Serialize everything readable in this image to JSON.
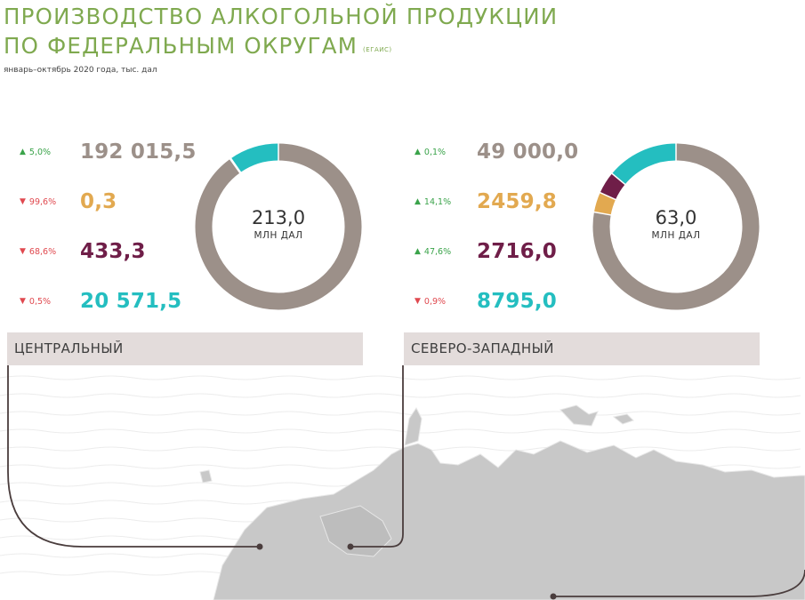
{
  "title_line1": "ПРОИЗВОДСТВО АЛКОГОЛЬНОЙ ПРОДУКЦИИ",
  "title_line2": "ПО ФЕДЕРАЛЬНЫМ ОКРУГАМ",
  "source_tag": "(ЕГАИС)",
  "subtitle": "январь–октябрь 2020 года, тыс. дал",
  "colors": {
    "gray": "#9c9089",
    "orange": "#e2a950",
    "wine": "#6f1e48",
    "teal": "#24bec0",
    "green": "#7fa94f",
    "up": "#3aa34a",
    "down": "#e0494f"
  },
  "chart_data": [
    {
      "type": "pie",
      "region": "ЦЕНТРАЛЬНЫЙ",
      "total": "213,0",
      "unit": "МЛН ДАЛ",
      "items": [
        {
          "value": 192015.5,
          "value_text": "192 015,5",
          "change": "5,0%",
          "direction": "up",
          "color": "#9c9089"
        },
        {
          "value": 0.3,
          "value_text": "0,3",
          "change": "99,6%",
          "direction": "down",
          "color": "#e2a950"
        },
        {
          "value": 433.3,
          "value_text": "433,3",
          "change": "68,6%",
          "direction": "down",
          "color": "#6f1e48"
        },
        {
          "value": 20571.5,
          "value_text": "20 571,5",
          "change": "0,5%",
          "direction": "down",
          "color": "#24bec0"
        }
      ]
    },
    {
      "type": "pie",
      "region": "СЕВЕРО-ЗАПАДНЫЙ",
      "total": "63,0",
      "unit": "МЛН ДАЛ",
      "items": [
        {
          "value": 49000.0,
          "value_text": "49 000,0",
          "change": "0,1%",
          "direction": "up",
          "color": "#9c9089"
        },
        {
          "value": 2459.8,
          "value_text": "2459,8",
          "change": "14,1%",
          "direction": "up",
          "color": "#e2a950"
        },
        {
          "value": 2716.0,
          "value_text": "2716,0",
          "change": "47,6%",
          "direction": "up",
          "color": "#6f1e48"
        },
        {
          "value": 8795.0,
          "value_text": "8795,0",
          "change": "0,9%",
          "direction": "down",
          "color": "#24bec0"
        }
      ]
    }
  ]
}
